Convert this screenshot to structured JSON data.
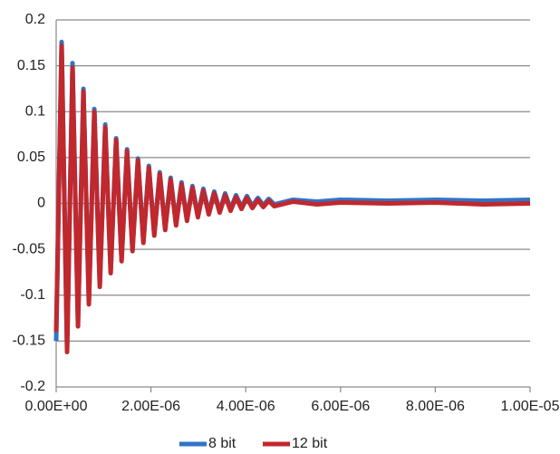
{
  "chart_data": {
    "type": "line",
    "x": [
      0,
      1.15e-07,
      2.3e-07,
      3.45e-07,
      4.6e-07,
      5.75e-07,
      6.9e-07,
      8.05e-07,
      9.2e-07,
      1.035e-06,
      1.15e-06,
      1.265e-06,
      1.38e-06,
      1.495e-06,
      1.61e-06,
      1.725e-06,
      1.84e-06,
      1.955e-06,
      2.07e-06,
      2.185e-06,
      2.3e-06,
      2.415e-06,
      2.53e-06,
      2.645e-06,
      2.76e-06,
      2.875e-06,
      2.99e-06,
      3.105e-06,
      3.22e-06,
      3.335e-06,
      3.45e-06,
      3.565e-06,
      3.68e-06,
      3.795e-06,
      3.91e-06,
      4.025e-06,
      4.14e-06,
      4.255e-06,
      4.37e-06,
      4.485e-06,
      4.6e-06,
      5e-06,
      5.5e-06,
      6e-06,
      7e-06,
      8e-06,
      9e-06,
      1e-05
    ],
    "series": [
      {
        "name": "8 bit",
        "color": "#2e75c8",
        "values": [
          -0.15,
          0.176,
          -0.158,
          0.153,
          -0.13,
          0.125,
          -0.106,
          0.103,
          -0.088,
          0.086,
          -0.073,
          0.071,
          -0.06,
          0.059,
          -0.05,
          0.049,
          -0.041,
          0.041,
          -0.033,
          0.034,
          -0.027,
          0.028,
          -0.022,
          0.023,
          -0.017,
          0.019,
          -0.013,
          0.016,
          -0.01,
          0.013,
          -0.008,
          0.011,
          -0.006,
          0.009,
          -0.004,
          0.008,
          -0.003,
          0.006,
          -0.002,
          0.005,
          -0.001,
          0.004,
          0.002,
          0.004,
          0.003,
          0.004,
          0.003,
          0.004
        ]
      },
      {
        "name": "12 bit",
        "color": "#c0282e",
        "values": [
          -0.14,
          0.172,
          -0.162,
          0.148,
          -0.134,
          0.122,
          -0.11,
          0.1,
          -0.091,
          0.083,
          -0.076,
          0.069,
          -0.063,
          0.057,
          -0.052,
          0.047,
          -0.043,
          0.039,
          -0.035,
          0.032,
          -0.029,
          0.026,
          -0.024,
          0.021,
          -0.019,
          0.017,
          -0.015,
          0.014,
          -0.012,
          0.011,
          -0.01,
          0.009,
          -0.008,
          0.007,
          -0.006,
          0.006,
          -0.005,
          0.004,
          -0.004,
          0.003,
          -0.003,
          0.002,
          -0.001,
          0.001,
          0,
          0.001,
          -0.001,
          0
        ]
      }
    ],
    "xlim": [
      0,
      1e-05
    ],
    "xticks": [
      {
        "value": 0,
        "label": "0.00E+00"
      },
      {
        "value": 2e-06,
        "label": "2.00E-06"
      },
      {
        "value": 4e-06,
        "label": "4.00E-06"
      },
      {
        "value": 6e-06,
        "label": "6.00E-06"
      },
      {
        "value": 8e-06,
        "label": "8.00E-06"
      },
      {
        "value": 1e-05,
        "label": "1.00E-05"
      }
    ],
    "ylim": [
      -0.2,
      0.2
    ],
    "yticks": [
      0.2,
      0.15,
      0.1,
      0.05,
      0,
      -0.05,
      -0.1,
      -0.15,
      -0.2
    ],
    "grid": true,
    "legend": "bottom"
  }
}
